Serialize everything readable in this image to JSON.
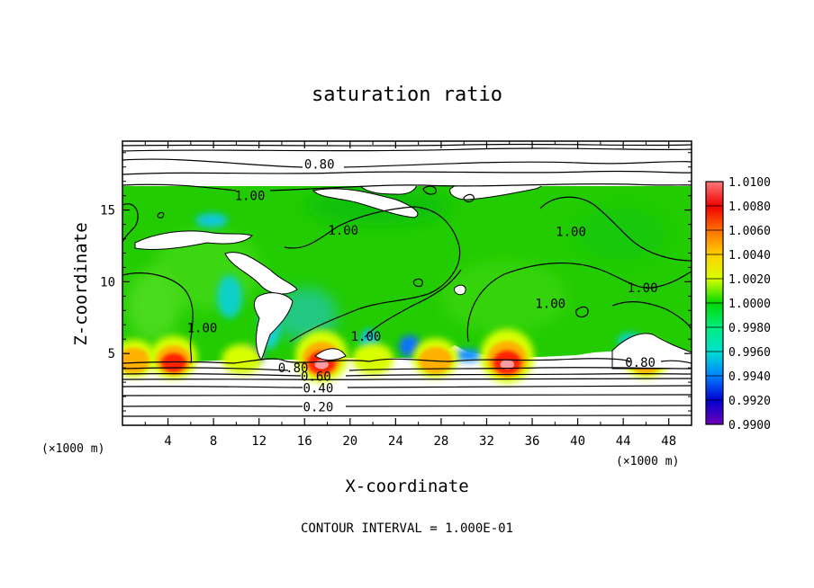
{
  "chart_data": {
    "type": "heatmap",
    "title": "saturation ratio",
    "xlabel": "X-coordinate",
    "ylabel": "Z-coordinate",
    "x_unit": "(×1000 m)",
    "z_unit": "(×1000 m)",
    "xlim": [
      0,
      50
    ],
    "ylim": [
      0,
      19.8
    ],
    "x_ticks": [
      "4",
      "8",
      "12",
      "16",
      "20",
      "24",
      "28",
      "32",
      "36",
      "40",
      "44",
      "48"
    ],
    "y_ticks": [
      "5",
      "10",
      "15"
    ],
    "footer": "CONTOUR INTERVAL = 1.000E-01",
    "colorbar": {
      "range": [
        0.99,
        1.01
      ],
      "labels": [
        "1.0100",
        "1.0080",
        "1.0060",
        "1.0040",
        "1.0020",
        "1.0000",
        "0.9980",
        "0.9960",
        "0.9940",
        "0.9920",
        "0.9900"
      ],
      "colors": [
        "#ff7878",
        "#f00000",
        "#ff7000",
        "#ffd000",
        "#d8ff00",
        "#00d800",
        "#00ee80",
        "#00e0d0",
        "#0080ff",
        "#0000d0",
        "#7000b8"
      ]
    },
    "colors": {
      "field_base": "#22cc00",
      "unsaturated": "#ffffff",
      "supersaturated_core": "#ff2000",
      "subsaturated_edge": "#1070ff"
    },
    "contour_labels": [
      {
        "text": "0.80",
        "x": 17.3,
        "z": 18.2
      },
      {
        "text": "1.00",
        "x": 11.2,
        "z": 16.0
      },
      {
        "text": "1.00",
        "x": 19.4,
        "z": 13.6
      },
      {
        "text": "1.00",
        "x": 39.4,
        "z": 13.5
      },
      {
        "text": "1.00",
        "x": 37.6,
        "z": 8.5
      },
      {
        "text": "1.00",
        "x": 45.7,
        "z": 9.6
      },
      {
        "text": "1.00",
        "x": 7.0,
        "z": 6.8
      },
      {
        "text": "1.00",
        "x": 21.4,
        "z": 6.2
      },
      {
        "text": "0.80",
        "x": 15.0,
        "z": 4.0
      },
      {
        "text": "0.60",
        "x": 17.0,
        "z": 3.4
      },
      {
        "text": "0.40",
        "x": 17.2,
        "z": 2.6
      },
      {
        "text": "0.20",
        "x": 17.2,
        "z": 1.3
      },
      {
        "text": "0.80",
        "x": 45.5,
        "z": 4.4
      }
    ],
    "cloud_bases": [
      {
        "x": 1.0,
        "intensity": 0.55
      },
      {
        "x": 4.5,
        "intensity": 0.7
      },
      {
        "x": 10.5,
        "intensity": 0.35
      },
      {
        "x": 17.5,
        "intensity": 0.95
      },
      {
        "x": 22.0,
        "intensity": 0.4
      },
      {
        "x": 27.5,
        "intensity": 0.6
      },
      {
        "x": 33.8,
        "intensity": 1.0
      },
      {
        "x": 46.0,
        "intensity": 0.6
      }
    ]
  }
}
